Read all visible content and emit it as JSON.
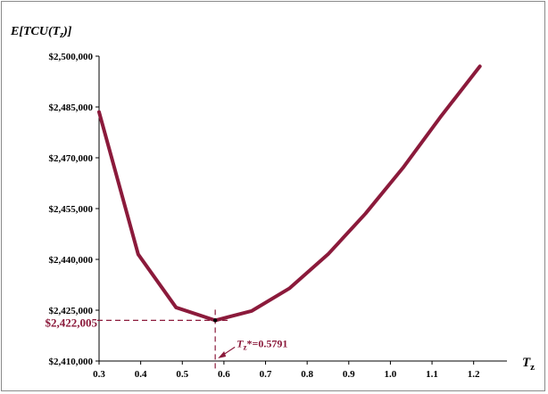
{
  "chart_data": {
    "type": "line",
    "ylabel_parts": [
      "E[",
      "TCU",
      "(",
      "T",
      "z",
      ")]"
    ],
    "xlabel_parts": [
      "T",
      "z"
    ],
    "x": [
      0.3,
      0.394,
      0.485,
      0.5791,
      0.667,
      0.758,
      0.85,
      0.94,
      1.03,
      1.12,
      1.215
    ],
    "y": [
      2483500,
      2441500,
      2425800,
      2422005,
      2424800,
      2431500,
      2441500,
      2453500,
      2467000,
      2482000,
      2497000
    ],
    "xlim": [
      0.3,
      1.25
    ],
    "ylim": [
      2410000,
      2500000
    ],
    "xticks": [
      0.3,
      0.4,
      0.5,
      0.6,
      0.7,
      0.8,
      0.9,
      1.0,
      1.1,
      1.2
    ],
    "xtick_labels": [
      "0.3",
      "0.4",
      "0.5",
      "0.6",
      "0.7",
      "0.8",
      "0.9",
      "1.0",
      "1.1",
      "1.2"
    ],
    "yticks": [
      2410000,
      2425000,
      2440000,
      2455000,
      2470000,
      2485000,
      2500000
    ],
    "ytick_labels": [
      "$2,410,000",
      "$2,425,000",
      "$2,440,000",
      "$2,455,000",
      "$2,470,000",
      "$2,485,000",
      "$2,500,000"
    ],
    "grid": false,
    "line_color": "#8b1a3b",
    "annotation_color": "#8b1a3b",
    "min_point": {
      "x": 0.5791,
      "y": 2422005,
      "value_label": "$2,422,005",
      "x_label_var": "T",
      "x_label_sub": "z",
      "x_label_rest": "*=0.5791"
    }
  }
}
